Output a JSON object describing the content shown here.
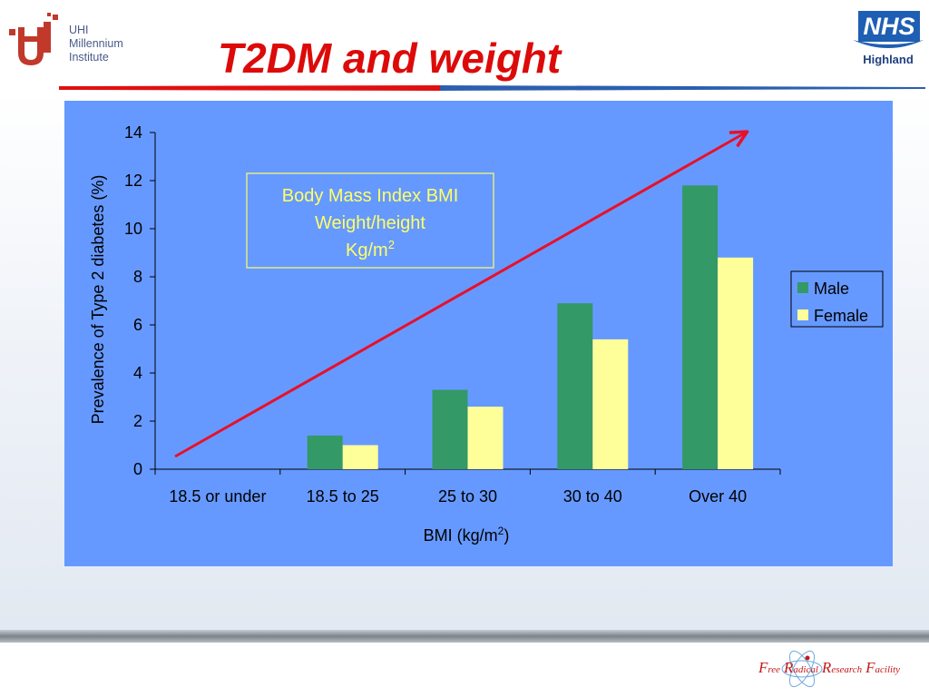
{
  "slide": {
    "title": "T2DM and weight",
    "logo_left": {
      "line1": "UHI",
      "line2": "Millennium",
      "line3": "Institute"
    },
    "logo_right": {
      "mark": "NHS",
      "name": "Highland"
    },
    "footer": {
      "f1": "F",
      "f1_rest": "ree",
      "f2": "R",
      "f2_rest": "adical",
      "f3": "R",
      "f3_rest": "esearch",
      "f4": "F",
      "f4_rest": "acility"
    },
    "colors": {
      "title": "#dd0a0a",
      "chart_background": "#6699ff",
      "male_bar": "#339966",
      "female_bar": "#ffff99",
      "trend_arrow": "#e8102a",
      "annotation_text": "#ffff66"
    }
  },
  "chart_data": {
    "type": "bar",
    "categories": [
      "18.5 or under",
      "18.5 to 25",
      "25 to 30",
      "30 to 40",
      "Over 40"
    ],
    "series": [
      {
        "name": "Male",
        "values": [
          0,
          1.4,
          3.3,
          6.9,
          11.8
        ]
      },
      {
        "name": "Female",
        "values": [
          0,
          1.0,
          2.6,
          5.4,
          8.8
        ]
      }
    ],
    "xlabel": "BMI (kg/m",
    "xlabel_sup": "2",
    "xlabel_end": ")",
    "ylabel": "Prevalence of Type 2 diabetes (%)",
    "ylim": [
      0,
      14
    ],
    "yticks": [
      "0",
      "2",
      "4",
      "6",
      "8",
      "10",
      "12",
      "14"
    ],
    "grid": false,
    "legend": "right",
    "annotation": {
      "line1": "Body Mass Index BMI",
      "line2": "Weight/height",
      "line3": "Kg/m",
      "line3_sup": "2"
    },
    "trend_arrow": "increasing"
  }
}
